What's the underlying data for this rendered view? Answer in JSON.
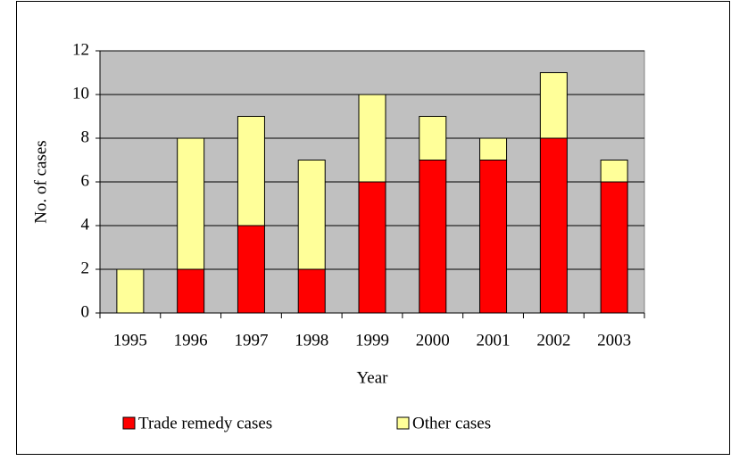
{
  "chart_data": {
    "type": "stacked_bar",
    "categories": [
      "1995",
      "1996",
      "1997",
      "1998",
      "1999",
      "2000",
      "2001",
      "2002",
      "2003"
    ],
    "series": [
      {
        "name": "Trade remedy cases",
        "color": "#ff0000",
        "values": [
          0,
          2,
          4,
          2,
          6,
          7,
          7,
          8,
          6
        ]
      },
      {
        "name": "Other cases",
        "color": "#ffff99",
        "values": [
          2,
          6,
          5,
          5,
          4,
          2,
          1,
          3,
          1
        ]
      }
    ],
    "x_label": "Year",
    "y_label": "No. of cases",
    "ylim": [
      0,
      12
    ],
    "yticks": [
      0,
      2,
      4,
      6,
      8,
      10,
      12
    ],
    "grid": true,
    "legend": "bottom"
  }
}
